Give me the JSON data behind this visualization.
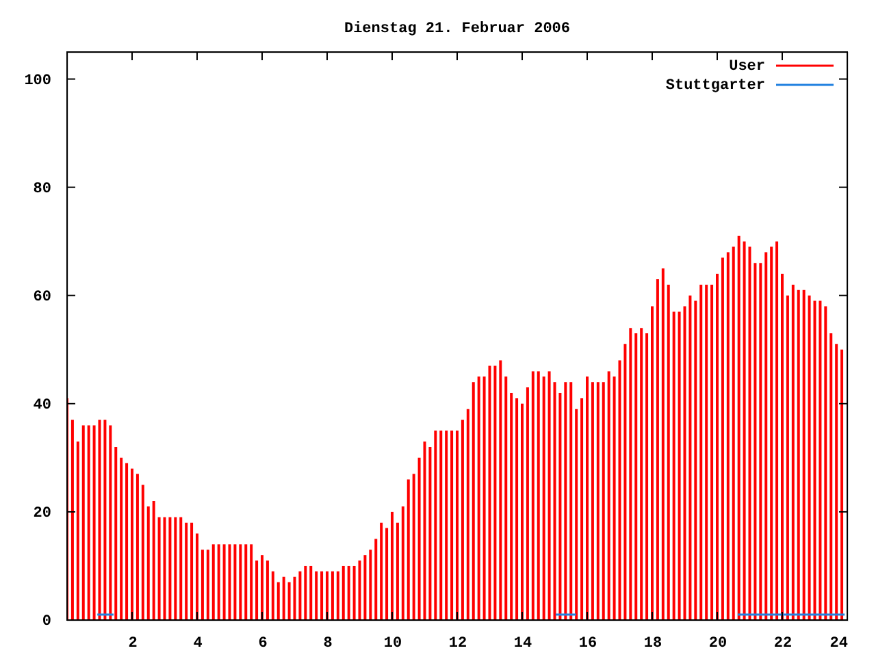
{
  "chart_data": {
    "type": "bar",
    "title": "Dienstag 21. Februar 2006",
    "xlim": [
      0,
      24
    ],
    "xticks": [
      2,
      4,
      6,
      8,
      10,
      12,
      14,
      16,
      18,
      20,
      22,
      24
    ],
    "ylim": [
      0,
      105
    ],
    "yticks": [
      0,
      20,
      40,
      60,
      80,
      100
    ],
    "grid": false,
    "legend": "top right",
    "series": [
      {
        "name": "User",
        "color": "#ff0000",
        "x": [
          0,
          0.1667,
          0.3333,
          0.5,
          0.6667,
          0.8333,
          1,
          1.1667,
          1.3333,
          1.5,
          1.6667,
          1.8333,
          2,
          2.1667,
          2.3333,
          2.5,
          2.6667,
          2.8333,
          3,
          3.1667,
          3.3333,
          3.5,
          3.6667,
          3.8333,
          4,
          4.1667,
          4.3333,
          4.5,
          4.6667,
          4.8333,
          5,
          5.1667,
          5.3333,
          5.5,
          5.6667,
          5.8333,
          6,
          6.1667,
          6.3333,
          6.5,
          6.6667,
          6.8333,
          7,
          7.1667,
          7.3333,
          7.5,
          7.6667,
          7.8333,
          8,
          8.1667,
          8.3333,
          8.5,
          8.6667,
          8.8333,
          9,
          9.1667,
          9.3333,
          9.5,
          9.6667,
          9.8333,
          10,
          10.1667,
          10.3333,
          10.5,
          10.6667,
          10.8333,
          11,
          11.1667,
          11.3333,
          11.5,
          11.6667,
          11.8333,
          12,
          12.1667,
          12.3333,
          12.5,
          12.6667,
          12.8333,
          13,
          13.1667,
          13.3333,
          13.5,
          13.6667,
          13.8333,
          14,
          14.1667,
          14.3333,
          14.5,
          14.6667,
          14.8333,
          15,
          15.1667,
          15.3333,
          15.5,
          15.6667,
          15.8333,
          16,
          16.1667,
          16.3333,
          16.5,
          16.6667,
          16.8333,
          17,
          17.1667,
          17.3333,
          17.5,
          17.6667,
          17.8333,
          18,
          18.1667,
          18.3333,
          18.5,
          18.6667,
          18.8333,
          19,
          19.1667,
          19.3333,
          19.5,
          19.6667,
          19.8333,
          20,
          20.1667,
          20.3333,
          20.5,
          20.6667,
          20.8333,
          21,
          21.1667,
          21.3333,
          21.5,
          21.6667,
          21.8333,
          22,
          22.1667,
          22.3333,
          22.5,
          22.6667,
          22.8333,
          23,
          23.1667,
          23.3333,
          23.5,
          23.6667,
          23.8333
        ],
        "values": [
          41,
          37,
          33,
          36,
          36,
          36,
          37,
          37,
          36,
          32,
          30,
          29,
          28,
          27,
          25,
          21,
          22,
          19,
          19,
          19,
          19,
          19,
          18,
          18,
          16,
          13,
          13,
          14,
          14,
          14,
          14,
          14,
          14,
          14,
          14,
          11,
          12,
          11,
          9,
          7,
          8,
          7,
          8,
          9,
          10,
          10,
          9,
          9,
          9,
          9,
          9,
          10,
          10,
          10,
          11,
          12,
          13,
          15,
          18,
          17,
          20,
          18,
          21,
          26,
          27,
          30,
          33,
          32,
          35,
          35,
          35,
          35,
          35,
          37,
          39,
          44,
          45,
          45,
          47,
          47,
          48,
          45,
          42,
          41,
          40,
          43,
          46,
          46,
          45,
          46,
          44,
          42,
          44,
          44,
          39,
          41,
          45,
          44,
          44,
          44,
          46,
          45,
          48,
          51,
          54,
          53,
          54,
          53,
          58,
          63,
          65,
          62,
          57,
          57,
          58,
          60,
          59,
          62,
          62,
          62,
          64,
          67,
          68,
          69,
          71,
          70,
          69,
          66,
          66,
          68,
          69,
          70,
          64,
          60,
          62,
          61,
          61,
          60,
          59,
          59,
          58,
          53,
          51,
          50
        ]
      },
      {
        "name": "Stuttgarter",
        "color": "#2080e0",
        "type": "line",
        "x": [
          0.93,
          1.43,
          1.5,
          15.03,
          15.66,
          15.7,
          20.63,
          23.92
        ],
        "values": [
          1,
          1,
          null,
          1,
          1,
          null,
          1,
          1
        ]
      }
    ]
  }
}
